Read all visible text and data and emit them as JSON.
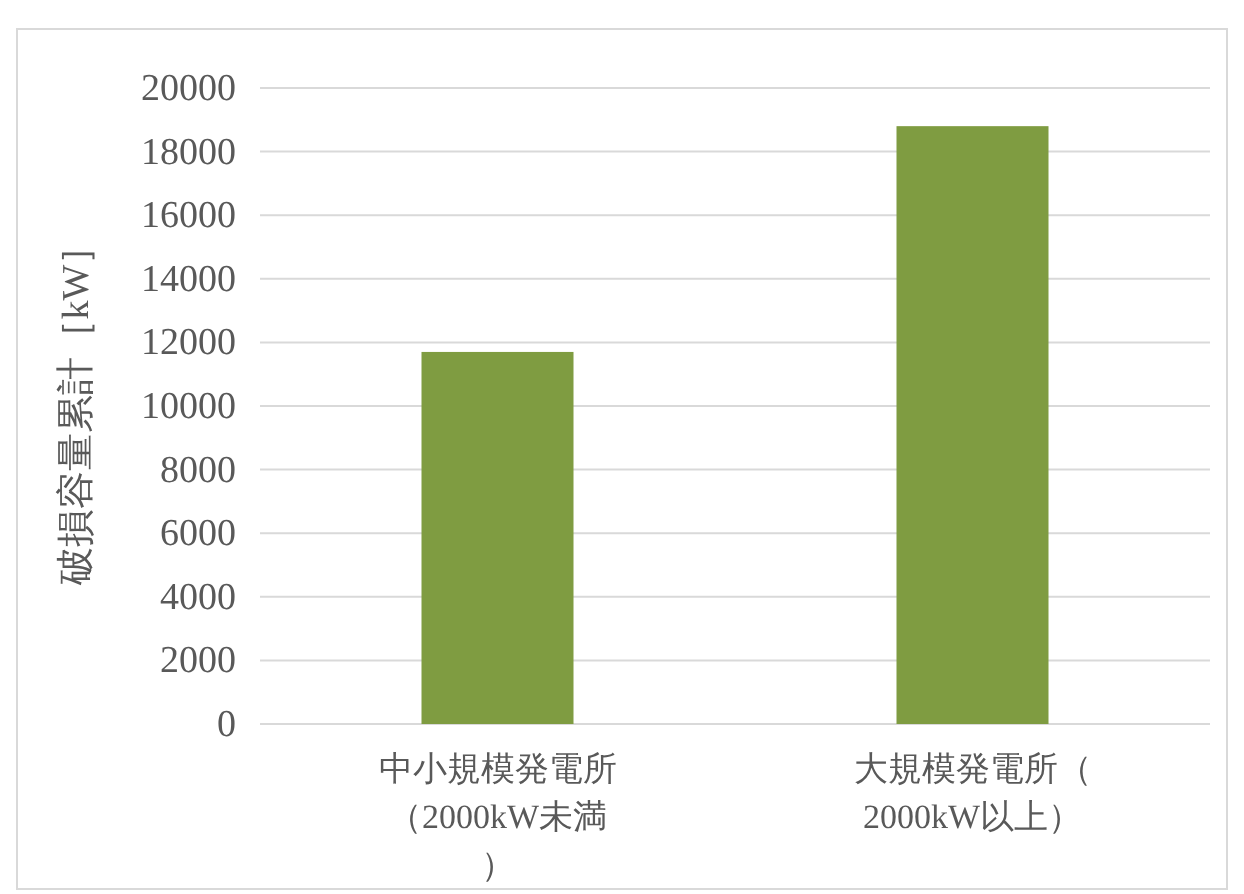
{
  "chart_data": {
    "type": "bar",
    "ylabel": "破損容量累計［kW］",
    "categories": [
      "中小規模発電所（2000kW未満）",
      "大規模発電所（2000kW以上）"
    ],
    "values": [
      11700,
      18800
    ],
    "color": "#7f9c41",
    "ylim": [
      0,
      20000
    ],
    "yticks": [
      0,
      2000,
      4000,
      6000,
      8000,
      10000,
      12000,
      14000,
      16000,
      18000,
      20000
    ],
    "grid": "y"
  }
}
